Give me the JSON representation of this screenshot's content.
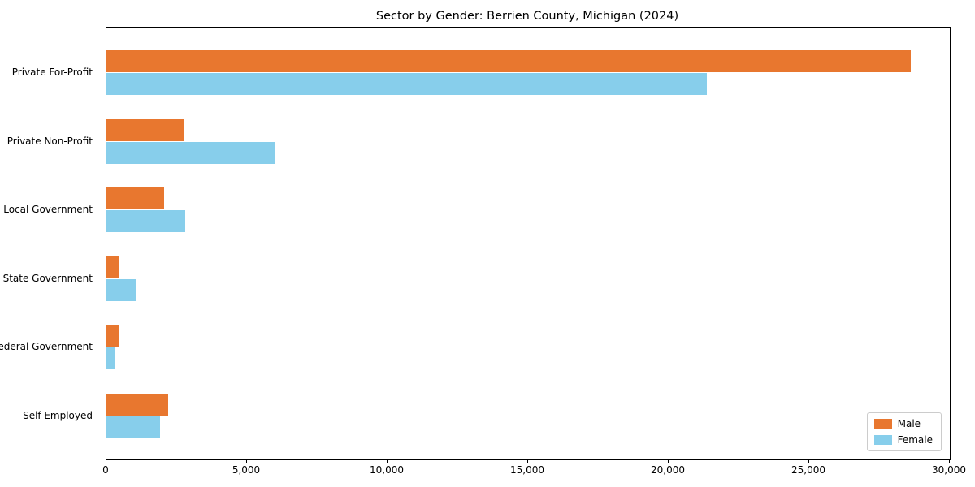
{
  "chart_data": {
    "type": "bar",
    "orientation": "horizontal",
    "title": "Sector by Gender: Berrien County, Michigan (2024)",
    "xlabel": "",
    "ylabel": "",
    "categories": [
      "Private For-Profit",
      "Private Non-Profit",
      "Local Government",
      "State Government",
      "Federal Government",
      "Self-Employed"
    ],
    "series": [
      {
        "name": "Male",
        "color": "#e8772f",
        "values": [
          28600,
          2750,
          2050,
          430,
          430,
          2200
        ]
      },
      {
        "name": "Female",
        "color": "#87ceeb",
        "values": [
          21350,
          6000,
          2800,
          1050,
          320,
          1900
        ]
      }
    ],
    "xlim": [
      0,
      30000
    ],
    "xticks": [
      0,
      5000,
      10000,
      15000,
      20000,
      25000,
      30000
    ],
    "xtick_labels": [
      "0",
      "5,000",
      "10,000",
      "15,000",
      "20,000",
      "25,000",
      "30,000"
    ],
    "grid": false,
    "legend_position": "lower right"
  }
}
